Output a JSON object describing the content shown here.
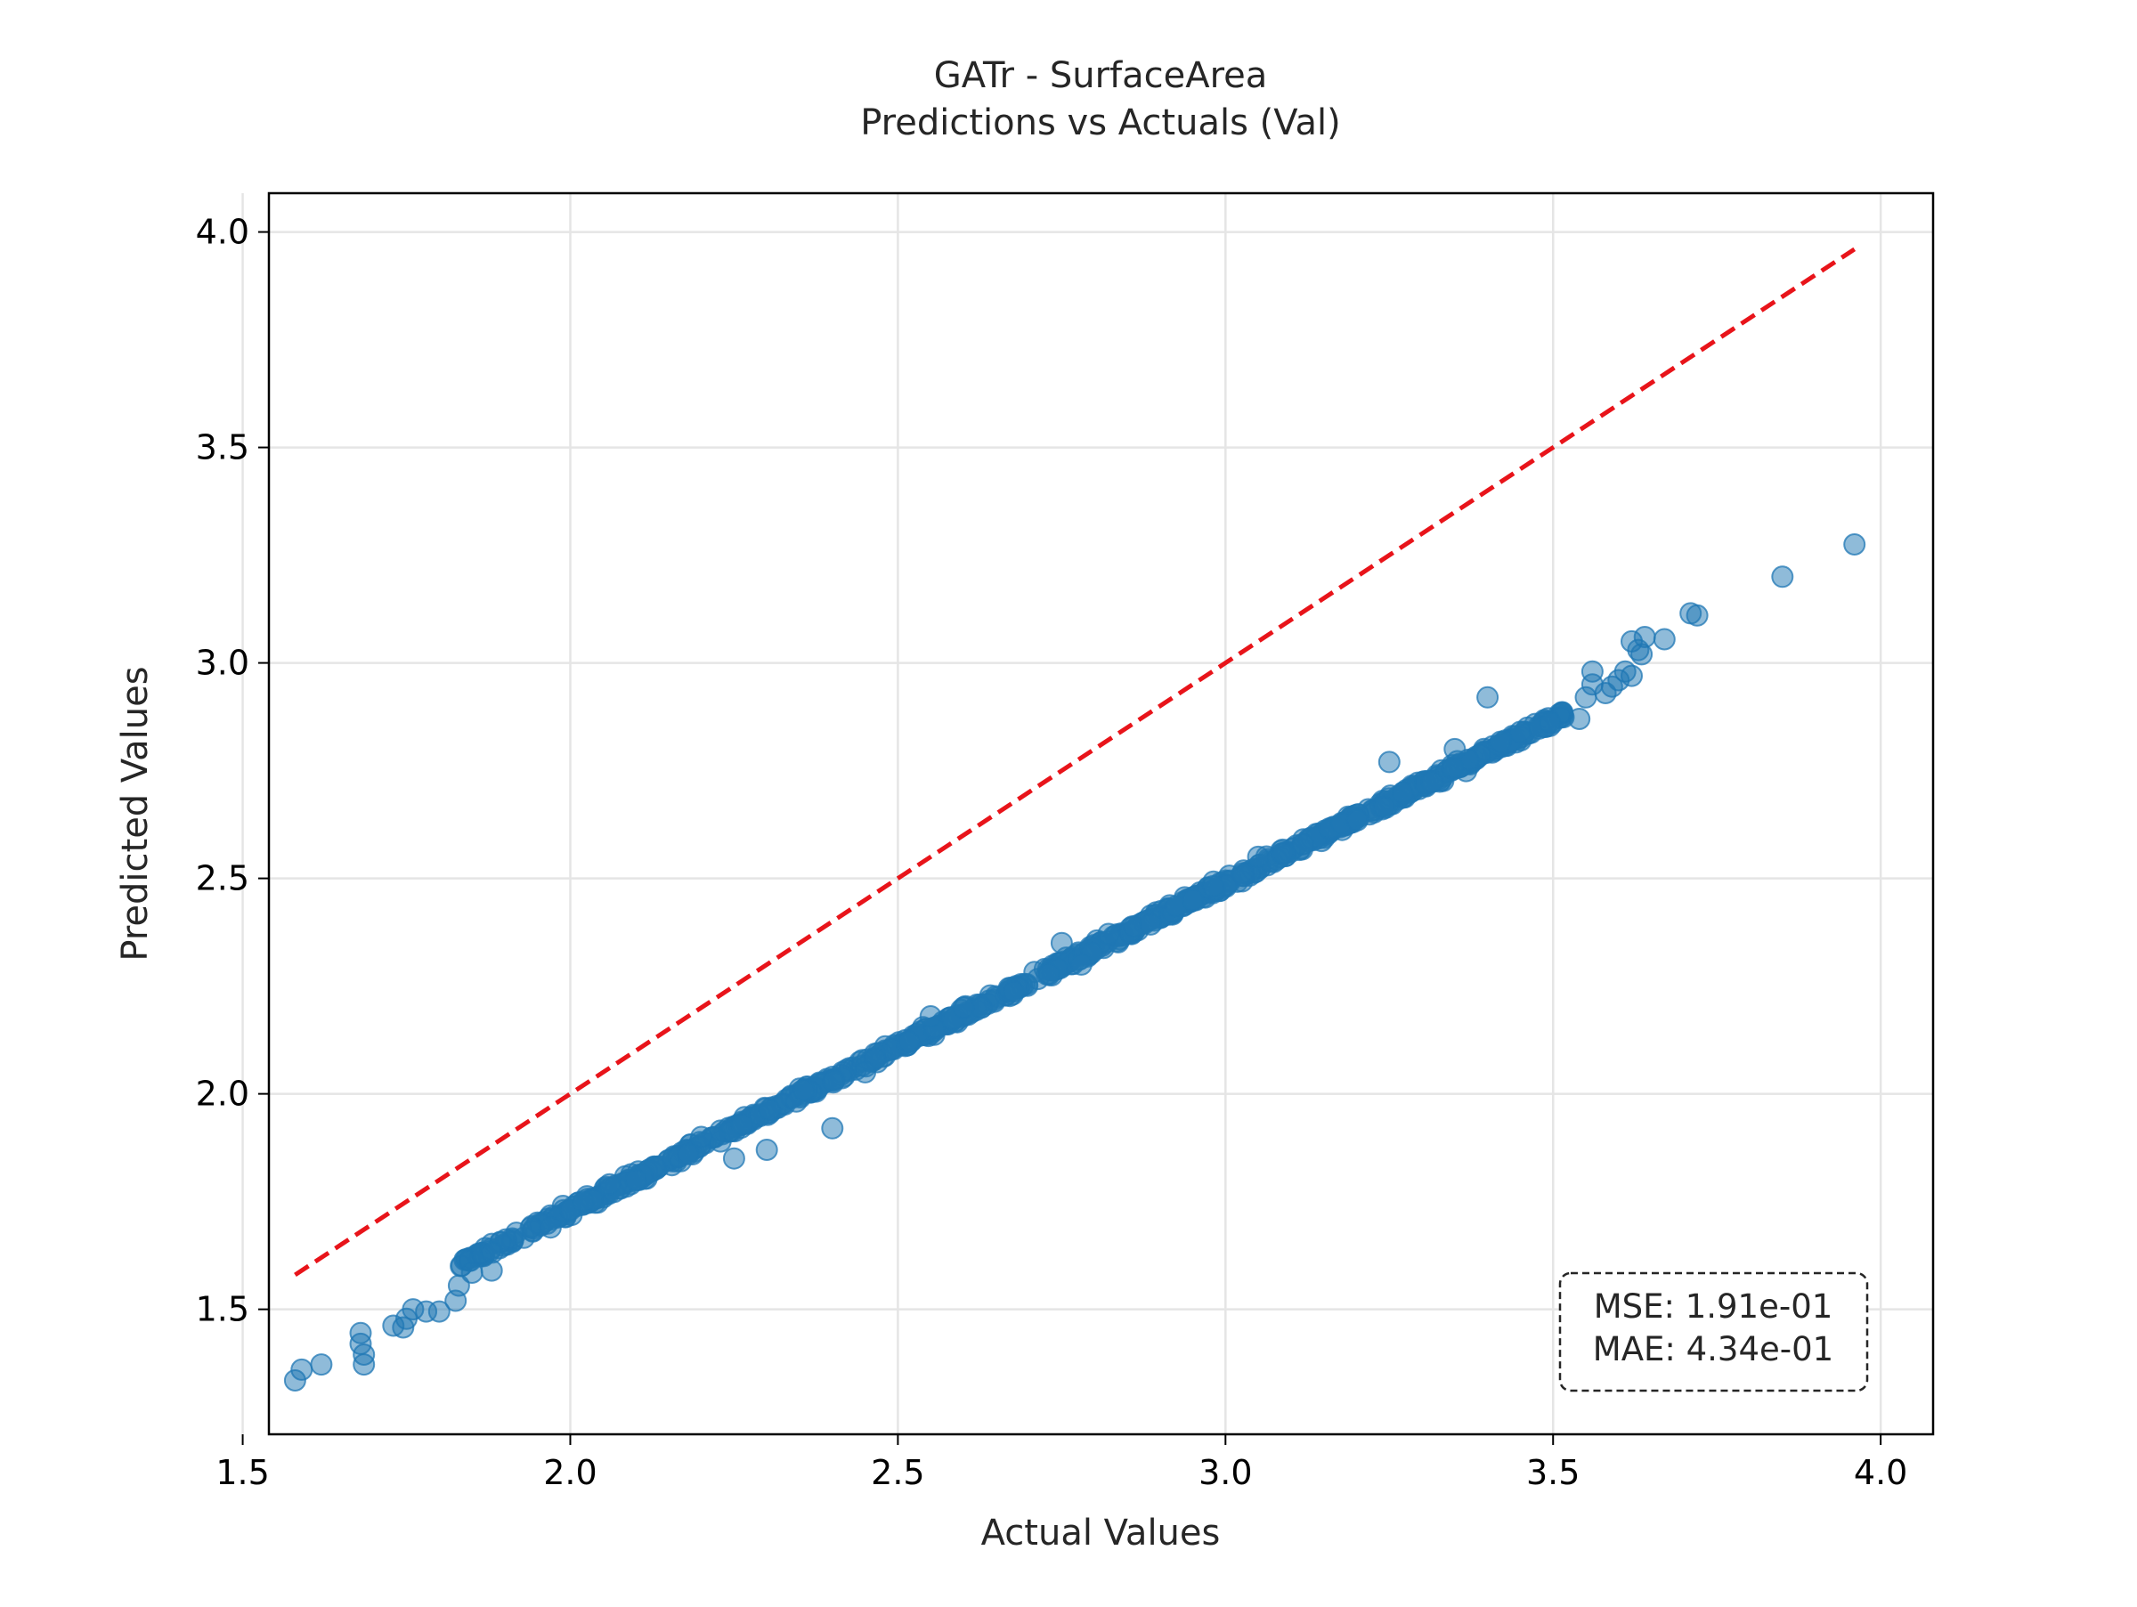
{
  "chart_data": {
    "type": "scatter",
    "title": "GATr - SurfaceArea",
    "subtitle": "Predictions vs Actuals (Val)",
    "xlabel": "Actual Values",
    "ylabel": "Predicted Values",
    "xlim": [
      1.54,
      4.08
    ],
    "ylim": [
      1.21,
      4.09
    ],
    "xticks": [
      1.5,
      2.0,
      2.5,
      3.0,
      3.5,
      4.0
    ],
    "xtick_labels": [
      "1.5",
      "2.0",
      "2.5",
      "3.0",
      "3.5",
      "4.0"
    ],
    "yticks": [
      1.5,
      2.0,
      2.5,
      3.0,
      3.5,
      4.0
    ],
    "ytick_labels": [
      "1.5",
      "2.0",
      "2.5",
      "3.0",
      "3.5",
      "4.0"
    ],
    "grid": true,
    "point_color": "#1f77b4",
    "reference_line": {
      "x": [
        1.58,
        3.96
      ],
      "y": [
        1.58,
        3.96
      ],
      "color": "#e8141a",
      "style": "dashed"
    },
    "trend": {
      "slope": 0.758,
      "intercept": 0.215,
      "x_range": [
        1.83,
        3.52
      ]
    },
    "points": [
      [
        1.58,
        1.335
      ],
      [
        1.59,
        1.36
      ],
      [
        1.62,
        1.372
      ],
      [
        1.68,
        1.445
      ],
      [
        1.68,
        1.42
      ],
      [
        1.685,
        1.395
      ],
      [
        1.685,
        1.372
      ],
      [
        1.73,
        1.462
      ],
      [
        1.745,
        1.458
      ],
      [
        1.75,
        1.478
      ],
      [
        1.76,
        1.5
      ],
      [
        1.78,
        1.495
      ],
      [
        1.8,
        1.495
      ],
      [
        1.825,
        1.52
      ],
      [
        1.83,
        1.555
      ],
      [
        1.85,
        1.585
      ],
      [
        1.88,
        1.59
      ],
      [
        1.97,
        1.69
      ],
      [
        2.02,
        1.75
      ],
      [
        2.06,
        1.79
      ],
      [
        2.1,
        1.8
      ],
      [
        2.18,
        1.86
      ],
      [
        2.2,
        1.9
      ],
      [
        2.25,
        1.85
      ],
      [
        2.3,
        1.87
      ],
      [
        2.4,
        1.92
      ],
      [
        2.45,
        2.05
      ],
      [
        2.55,
        2.18
      ],
      [
        2.6,
        2.2
      ],
      [
        2.75,
        2.35
      ],
      [
        2.78,
        2.3
      ],
      [
        2.95,
        2.45
      ],
      [
        3.05,
        2.55
      ],
      [
        3.25,
        2.77
      ],
      [
        3.35,
        2.8
      ],
      [
        3.4,
        2.92
      ],
      [
        3.45,
        2.84
      ],
      [
        3.54,
        2.87
      ],
      [
        3.55,
        2.92
      ],
      [
        3.56,
        2.95
      ],
      [
        3.58,
        2.93
      ],
      [
        3.6,
        2.96
      ],
      [
        3.61,
        2.98
      ],
      [
        3.62,
        2.97
      ],
      [
        3.56,
        2.98
      ],
      [
        3.59,
        2.945
      ],
      [
        3.63,
        3.03
      ],
      [
        3.635,
        3.02
      ],
      [
        3.64,
        3.06
      ],
      [
        3.67,
        3.055
      ],
      [
        3.62,
        3.05
      ],
      [
        3.71,
        3.115
      ],
      [
        3.72,
        3.11
      ],
      [
        3.85,
        3.2
      ],
      [
        3.96,
        3.275
      ]
    ],
    "stats": {
      "mse_label": "MSE: 1.91e-01",
      "mae_label": "MAE: 4.34e-01"
    }
  }
}
